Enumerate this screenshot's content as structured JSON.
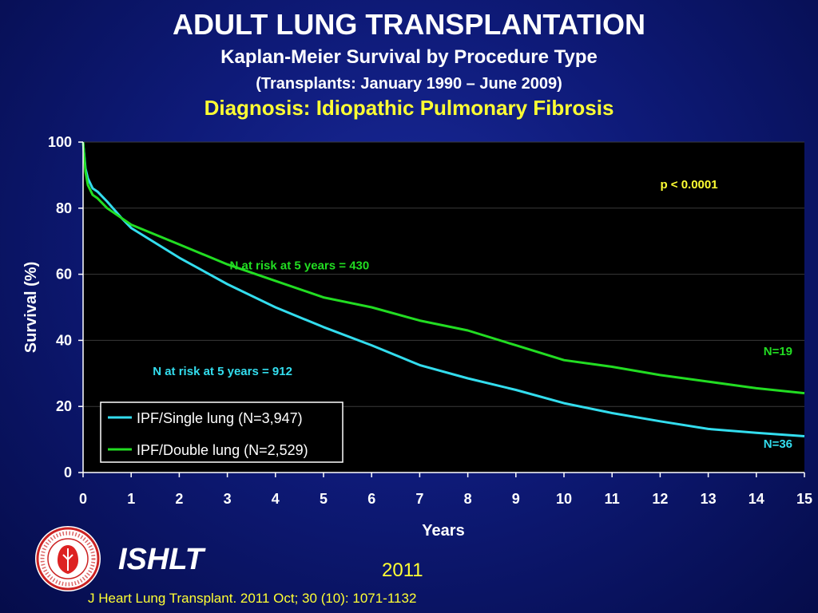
{
  "header": {
    "title": "ADULT LUNG TRANSPLANTATION",
    "subtitle": "Kaplan-Meier Survival by Procedure Type",
    "period": "(Transplants: January 1990 – June 2009)",
    "diagnosis": "Diagnosis: Idiopathic Pulmonary Fibrosis"
  },
  "colors": {
    "single": "#33ddee",
    "double": "#22dd22",
    "annotation_yellow": "#ffff33",
    "plot_bg": "#000000"
  },
  "chart_data": {
    "type": "line",
    "xlabel": "Years",
    "ylabel": "Survival (%)",
    "xlim": [
      0,
      15
    ],
    "ylim": [
      0,
      100
    ],
    "xticks": [
      0,
      1,
      2,
      3,
      4,
      5,
      6,
      7,
      8,
      9,
      10,
      11,
      12,
      13,
      14,
      15
    ],
    "yticks": [
      0,
      20,
      40,
      60,
      80,
      100
    ],
    "grid": "horizontal",
    "legend_position": "bottom-left",
    "series": [
      {
        "name": "IPF/Single lung (N=3,947)",
        "color_key": "single",
        "x": [
          0,
          0.05,
          0.1,
          0.2,
          0.3,
          0.5,
          0.8,
          1,
          2,
          3,
          4,
          5,
          6,
          7,
          8,
          9,
          10,
          11,
          12,
          13,
          14,
          15
        ],
        "y": [
          100,
          92,
          89,
          86,
          85,
          82,
          77,
          74,
          65,
          57,
          50,
          44,
          38.5,
          32.5,
          28.5,
          25,
          21,
          18,
          15.5,
          13.2,
          12,
          11
        ]
      },
      {
        "name": "IPF/Double lung (N=2,529)",
        "color_key": "double",
        "x": [
          0,
          0.05,
          0.1,
          0.2,
          0.3,
          0.5,
          0.8,
          1,
          2,
          3,
          4,
          5,
          6,
          7,
          8,
          9,
          10,
          11,
          12,
          13,
          14,
          15
        ],
        "y": [
          100,
          91,
          87,
          84,
          83,
          80,
          77,
          75,
          69,
          63,
          58,
          53,
          50,
          46,
          43,
          38.5,
          34,
          32,
          29.5,
          27.5,
          25.5,
          24
        ]
      }
    ],
    "annotations": [
      {
        "text": "p < 0.0001",
        "x": 12.6,
        "y": 86,
        "color_key": "annotation_yellow"
      },
      {
        "text": "N at risk at 5 years = 430",
        "x": 4.5,
        "y": 61.5,
        "color_key": "double"
      },
      {
        "text": "N at risk at 5 years = 912",
        "x": 2.9,
        "y": 29.5,
        "color_key": "single"
      },
      {
        "text": "N=19",
        "x": 14.45,
        "y": 35.5,
        "color_key": "double"
      },
      {
        "text": "N=36",
        "x": 14.45,
        "y": 7.5,
        "color_key": "single"
      }
    ]
  },
  "footer": {
    "org": "ISHLT",
    "year": "2011",
    "citation": "J Heart Lung Transplant. 2011 Oct; 30 (10): 1071-1132",
    "logo_text": "INTERNATIONAL SOCIETY FOR HEART & LUNG TRANSPLANTATION"
  }
}
